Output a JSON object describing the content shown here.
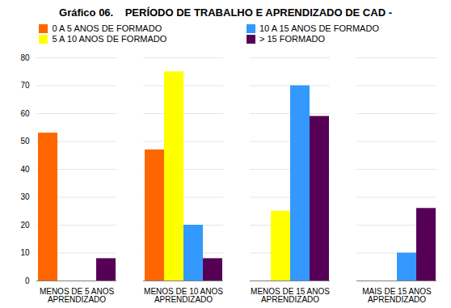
{
  "chart_data": {
    "type": "bar",
    "title": "Gráfico 06.    PERÍODO DE TRABALHO E APRENDIZADO DE CAD -",
    "categories": [
      "MENOS DE 5 ANOS\nAPRENDIZADO",
      "MENOS DE 10 ANOS\nAPRENDIZADO",
      "MENOS DE 15 ANOS\nAPRENDIZADO",
      "MAIS DE 15 ANOS\nAPRENDIZADO"
    ],
    "series": [
      {
        "name": "0 A 5 ANOS DE FORMADO",
        "color": "#FF6600",
        "values": [
          53,
          47,
          0,
          0
        ]
      },
      {
        "name": "5 A 10 ANOS DE FORMADO",
        "color": "#FFFF00",
        "values": [
          0,
          75,
          25,
          0
        ]
      },
      {
        "name": "10 A 15 ANOS DE FORMADO",
        "color": "#3399FF",
        "values": [
          0,
          20,
          70,
          10
        ]
      },
      {
        "name": "> 15 FORMADO",
        "color": "#550055",
        "values": [
          8,
          8,
          59,
          26
        ]
      }
    ],
    "ylim": [
      0,
      80
    ],
    "yticks": [
      0,
      10,
      20,
      30,
      40,
      50,
      60,
      70,
      80
    ],
    "grid": true,
    "legend": "top left"
  }
}
